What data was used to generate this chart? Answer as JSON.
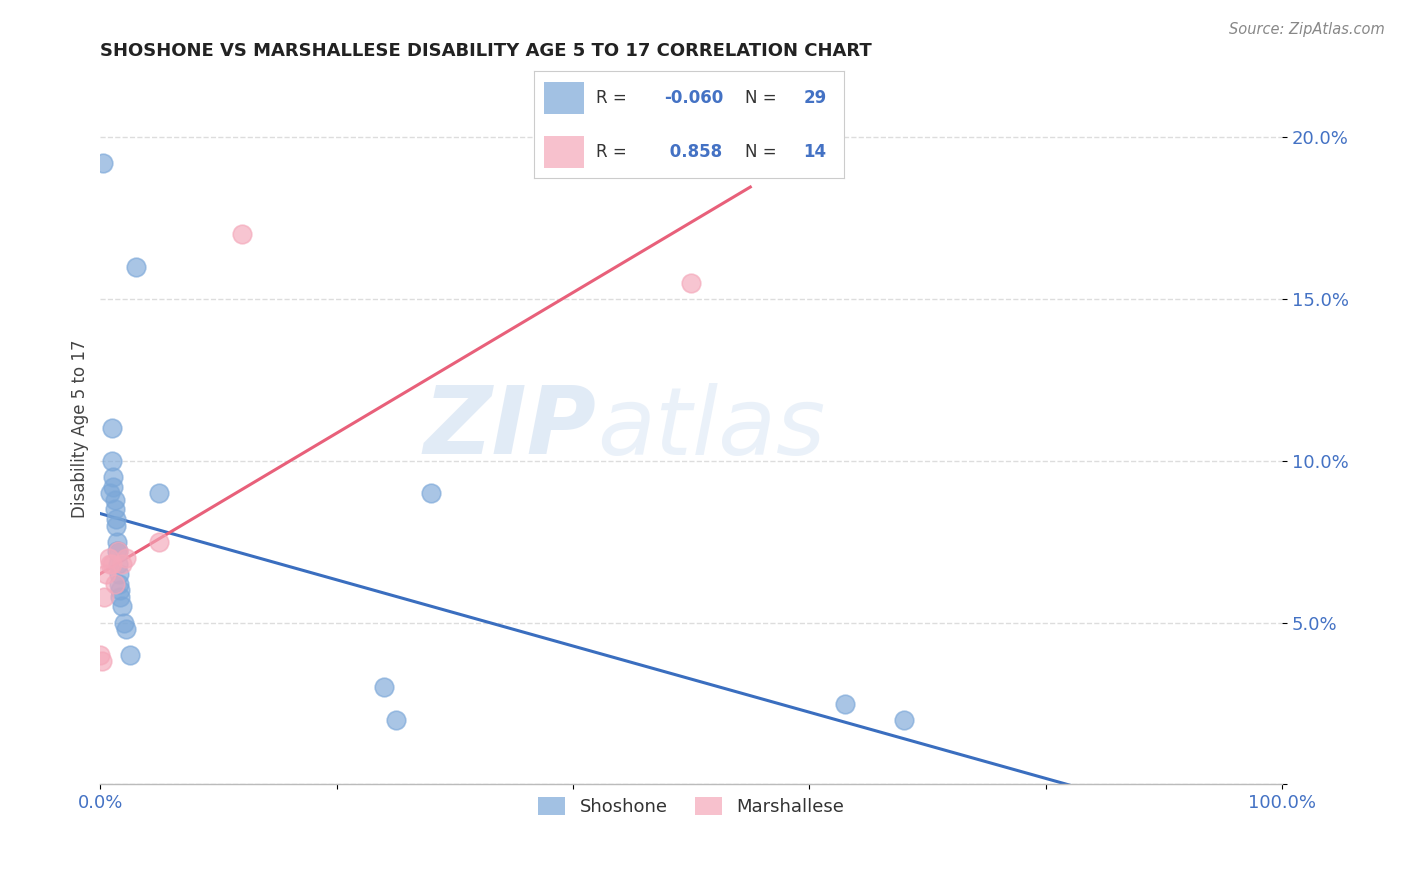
{
  "title": "SHOSHONE VS MARSHALLESE DISABILITY AGE 5 TO 17 CORRELATION CHART",
  "source": "Source: ZipAtlas.com",
  "xlabel_color": "#4472C4",
  "ylabel": "Disability Age 5 to 17",
  "xlim": [
    0.0,
    1.0
  ],
  "ylim": [
    0.0,
    0.22
  ],
  "xticks": [
    0.0,
    0.2,
    0.4,
    0.6,
    0.8,
    1.0
  ],
  "xticklabels": [
    "0.0%",
    "",
    "",
    "",
    "",
    "100.0%"
  ],
  "yticks": [
    0.0,
    0.05,
    0.1,
    0.15,
    0.2
  ],
  "yticklabels": [
    "",
    "5.0%",
    "10.0%",
    "15.0%",
    "20.0%"
  ],
  "shoshone_color": "#7BA7D8",
  "marshallese_color": "#F4A7B9",
  "shoshone_line_color": "#3A6EBF",
  "marshallese_line_color": "#E8607A",
  "shoshone_R": -0.06,
  "shoshone_N": 29,
  "marshallese_R": 0.858,
  "marshallese_N": 14,
  "shoshone_x": [
    0.002,
    0.008,
    0.01,
    0.01,
    0.011,
    0.011,
    0.012,
    0.012,
    0.013,
    0.013,
    0.014,
    0.014,
    0.015,
    0.015,
    0.016,
    0.016,
    0.017,
    0.017,
    0.018,
    0.02,
    0.022,
    0.025,
    0.03,
    0.05,
    0.24,
    0.25,
    0.28,
    0.63,
    0.68
  ],
  "shoshone_y": [
    0.192,
    0.09,
    0.11,
    0.1,
    0.095,
    0.092,
    0.088,
    0.085,
    0.082,
    0.08,
    0.075,
    0.072,
    0.072,
    0.068,
    0.065,
    0.062,
    0.06,
    0.058,
    0.055,
    0.05,
    0.048,
    0.04,
    0.16,
    0.09,
    0.03,
    0.02,
    0.09,
    0.025,
    0.02
  ],
  "marshallese_x": [
    0.0,
    0.001,
    0.003,
    0.005,
    0.007,
    0.008,
    0.01,
    0.012,
    0.015,
    0.018,
    0.022,
    0.05,
    0.12,
    0.5
  ],
  "marshallese_y": [
    0.04,
    0.038,
    0.058,
    0.065,
    0.07,
    0.068,
    0.068,
    0.062,
    0.072,
    0.068,
    0.07,
    0.075,
    0.17,
    0.155
  ],
  "watermark_zip": "ZIP",
  "watermark_atlas": "atlas",
  "background_color": "#FFFFFF",
  "grid_color": "#DDDDDD",
  "legend_shoshone_R": "-0.060",
  "legend_shoshone_N": "29",
  "legend_marshallese_R": "0.858",
  "legend_marshallese_N": "14"
}
